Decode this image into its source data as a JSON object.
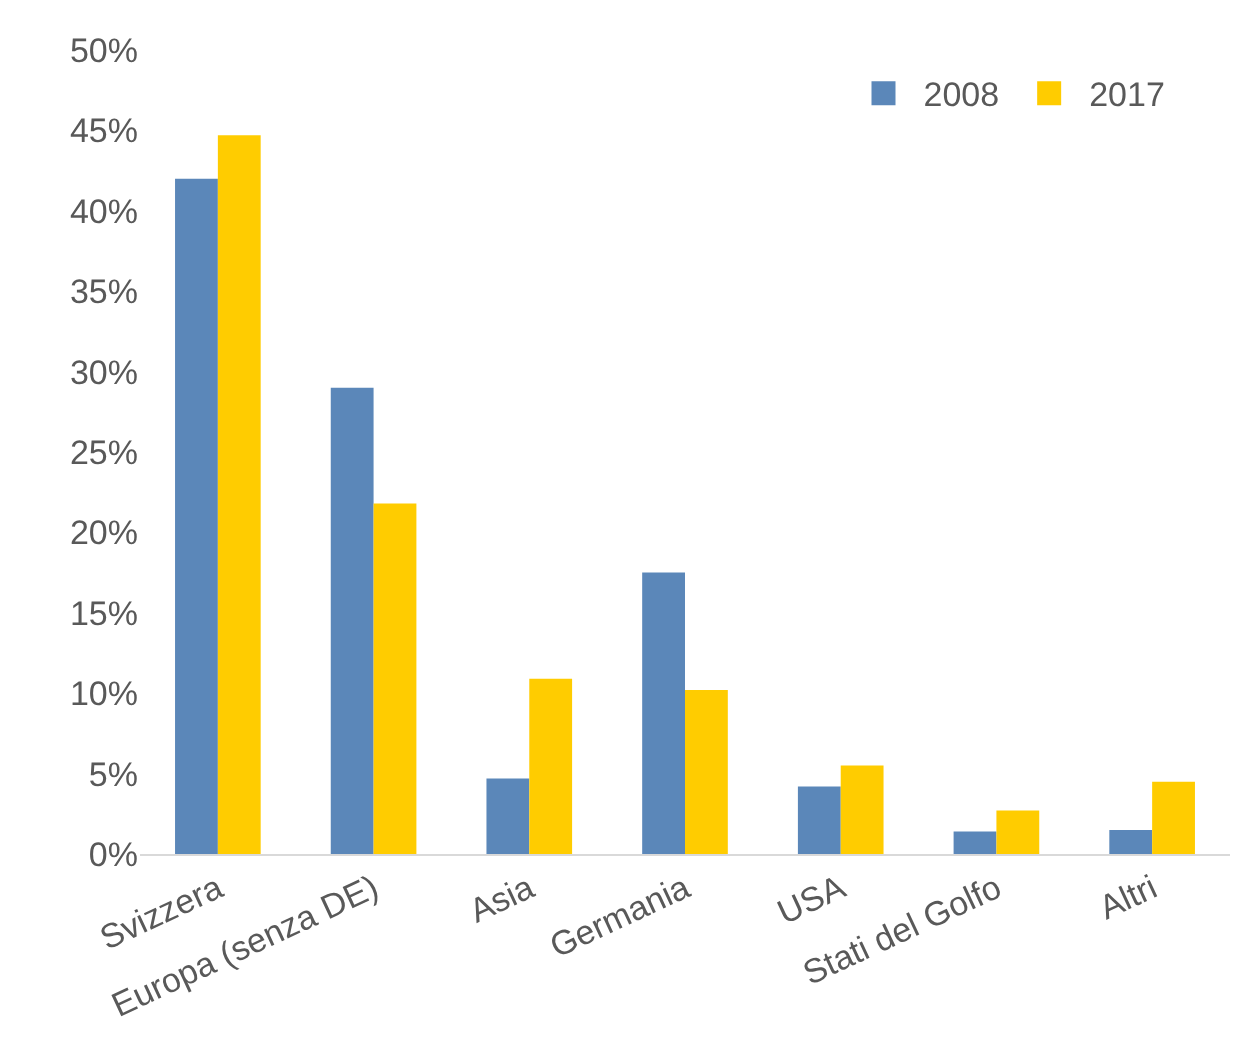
{
  "chart_data": {
    "type": "bar",
    "categories": [
      "Svizzera",
      "Europa (senza DE)",
      "Asia",
      "Germania",
      "USA",
      "Stati del Golfo",
      "Altri"
    ],
    "series": [
      {
        "name": "2008",
        "color": "#5b87b9",
        "values": [
          42.0,
          29.0,
          4.7,
          17.5,
          4.2,
          1.4,
          1.5
        ]
      },
      {
        "name": "2017",
        "color": "#ffcc00",
        "values": [
          44.7,
          21.8,
          10.9,
          10.2,
          5.5,
          2.7,
          4.5
        ]
      }
    ],
    "ylim": [
      0,
      50
    ],
    "yticks": [
      {
        "value": 0,
        "label": "0%"
      },
      {
        "value": 5,
        "label": "5%"
      },
      {
        "value": 10,
        "label": "10%"
      },
      {
        "value": 15,
        "label": "15%"
      },
      {
        "value": 20,
        "label": "20%"
      },
      {
        "value": 25,
        "label": "25%"
      },
      {
        "value": 30,
        "label": "30%"
      },
      {
        "value": 35,
        "label": "35%"
      },
      {
        "value": 40,
        "label": "40%"
      },
      {
        "value": 45,
        "label": "45%"
      },
      {
        "value": 50,
        "label": "50%"
      }
    ],
    "grid": false,
    "legend": "top right"
  }
}
